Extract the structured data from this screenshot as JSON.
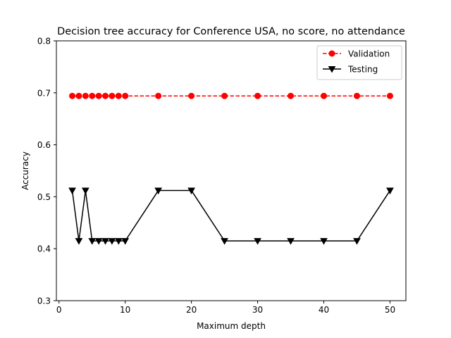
{
  "chart_data": {
    "type": "line",
    "title": "Decision tree accuracy for Conference USA, no score, no attendance",
    "xlabel": "Maximum depth",
    "ylabel": "Accuracy",
    "xlim": [
      -0.4,
      52.4
    ],
    "ylim": [
      0.3,
      0.8
    ],
    "x_ticks": [
      0,
      10,
      20,
      30,
      40,
      50
    ],
    "y_ticks": [
      0.3,
      0.4,
      0.5,
      0.6,
      0.7,
      0.8
    ],
    "x_tick_labels": [
      "0",
      "10",
      "20",
      "30",
      "40",
      "50"
    ],
    "y_tick_labels": [
      "0.3",
      "0.4",
      "0.5",
      "0.6",
      "0.7",
      "0.8"
    ],
    "grid": false,
    "legend_position": "top-right",
    "x": [
      2,
      3,
      4,
      5,
      6,
      7,
      8,
      9,
      10,
      15,
      20,
      25,
      30,
      35,
      40,
      45,
      50
    ],
    "series": [
      {
        "name": "Validation",
        "color": "#ff0000",
        "line_style": "dashed",
        "marker": "circle",
        "values": [
          0.694,
          0.694,
          0.694,
          0.694,
          0.694,
          0.694,
          0.694,
          0.694,
          0.694,
          0.694,
          0.694,
          0.694,
          0.694,
          0.694,
          0.694,
          0.694,
          0.694
        ]
      },
      {
        "name": "Testing",
        "color": "#000000",
        "line_style": "solid",
        "marker": "triangle-down",
        "values": [
          0.512,
          0.415,
          0.512,
          0.415,
          0.415,
          0.415,
          0.415,
          0.415,
          0.415,
          0.512,
          0.512,
          0.415,
          0.415,
          0.415,
          0.415,
          0.415,
          0.512
        ]
      }
    ]
  }
}
